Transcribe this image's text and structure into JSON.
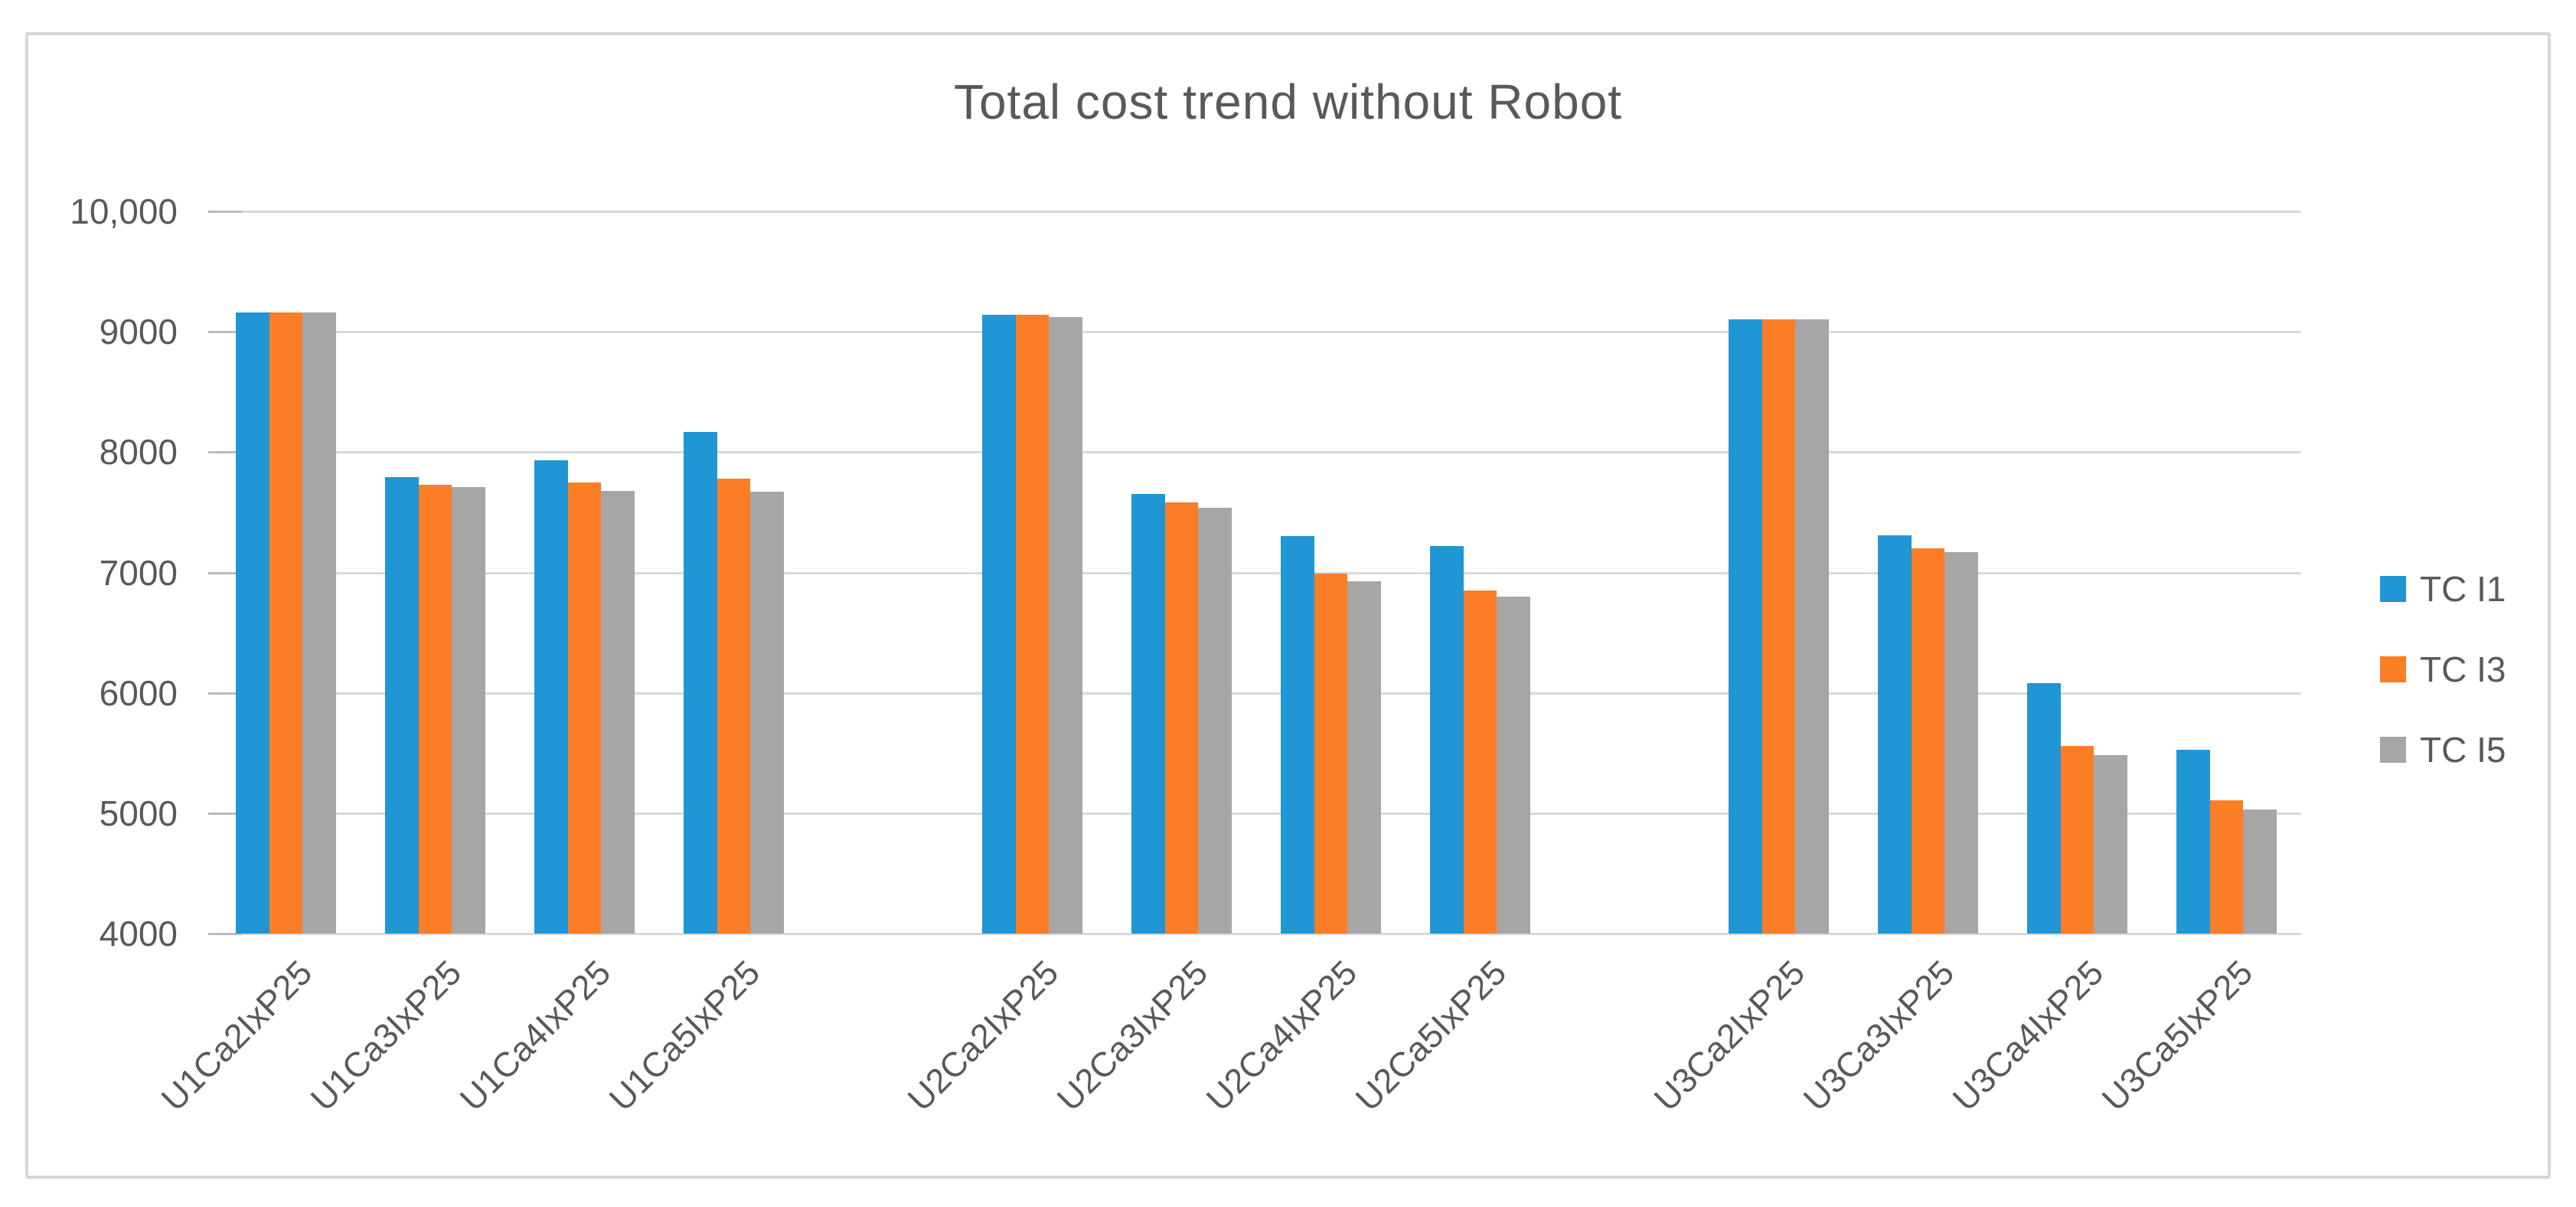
{
  "chart_data": {
    "type": "bar",
    "title": "Total cost trend without Robot",
    "categories": [
      "U1Ca2IxP25",
      "U1Ca3IxP25",
      "U1Ca4IxP25",
      "U1Ca5IxP25",
      "U2Ca2IxP25",
      "U2Ca3IxP25",
      "U2Ca4IxP25",
      "U2Ca5IxP25",
      "U3Ca2IxP25",
      "U3Ca3IxP25",
      "U3Ca4IxP25",
      "U3Ca5IxP25"
    ],
    "category_groups": [
      4,
      4,
      4
    ],
    "series": [
      {
        "name": "TC I1",
        "color": "#2096D5",
        "values": [
          9160,
          7790,
          7930,
          8170,
          9140,
          7650,
          7300,
          7220,
          9100,
          7310,
          6080,
          5530
        ]
      },
      {
        "name": "TC I3",
        "color": "#FB7D26",
        "values": [
          9160,
          7730,
          7750,
          7780,
          9140,
          7580,
          6990,
          6850,
          9100,
          7200,
          5560,
          5110
        ]
      },
      {
        "name": "TC I5",
        "color": "#A6A6A6",
        "values": [
          9160,
          7710,
          7680,
          7670,
          9120,
          7540,
          6930,
          6800,
          9100,
          7170,
          5480,
          5030
        ]
      }
    ],
    "y_axis": {
      "min": 4000,
      "max": 10000,
      "step": 1000,
      "tick_labels": [
        "10,000",
        "9000",
        "8000",
        "7000",
        "6000",
        "5000",
        "4000"
      ]
    },
    "xlabel": "",
    "ylabel": "",
    "ylim": [
      4000,
      10000
    ],
    "grid": true,
    "legend_position": "right",
    "x_label_rotation_deg": 45
  },
  "colors": {
    "text": "#595959",
    "gridline": "#D9D9D9",
    "axis_tick": "#BBBBBB",
    "canvas_border": "#D7D7D7",
    "background": "#FFFFFF"
  }
}
